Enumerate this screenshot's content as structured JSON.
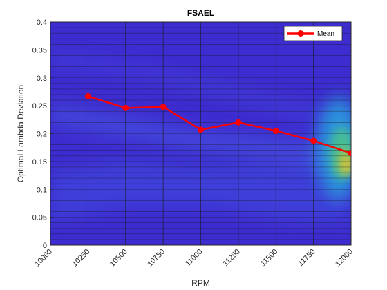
{
  "chart_data": {
    "type": "line",
    "title": "FSAEL",
    "xlabel": "RPM",
    "ylabel": "Optimal Lambda Deviation",
    "xlim": [
      10000,
      12000
    ],
    "ylim": [
      0,
      0.4
    ],
    "xticks": [
      "10000",
      "10250",
      "10500",
      "10750",
      "11000",
      "11250",
      "11500",
      "11750",
      "12000"
    ],
    "yticks": [
      "0",
      "0.05",
      "0.1",
      "0.15",
      "0.2",
      "0.25",
      "0.3",
      "0.35",
      "0.4"
    ],
    "grid": true,
    "legend_position": "top-right",
    "background": "heatmap",
    "series": [
      {
        "name": "Mean",
        "color": "#ff0000",
        "x": [
          10250,
          10500,
          10750,
          11000,
          11250,
          11500,
          11750,
          12000
        ],
        "y": [
          0.267,
          0.246,
          0.248,
          0.207,
          0.22,
          0.205,
          0.187,
          0.165
        ]
      }
    ]
  }
}
